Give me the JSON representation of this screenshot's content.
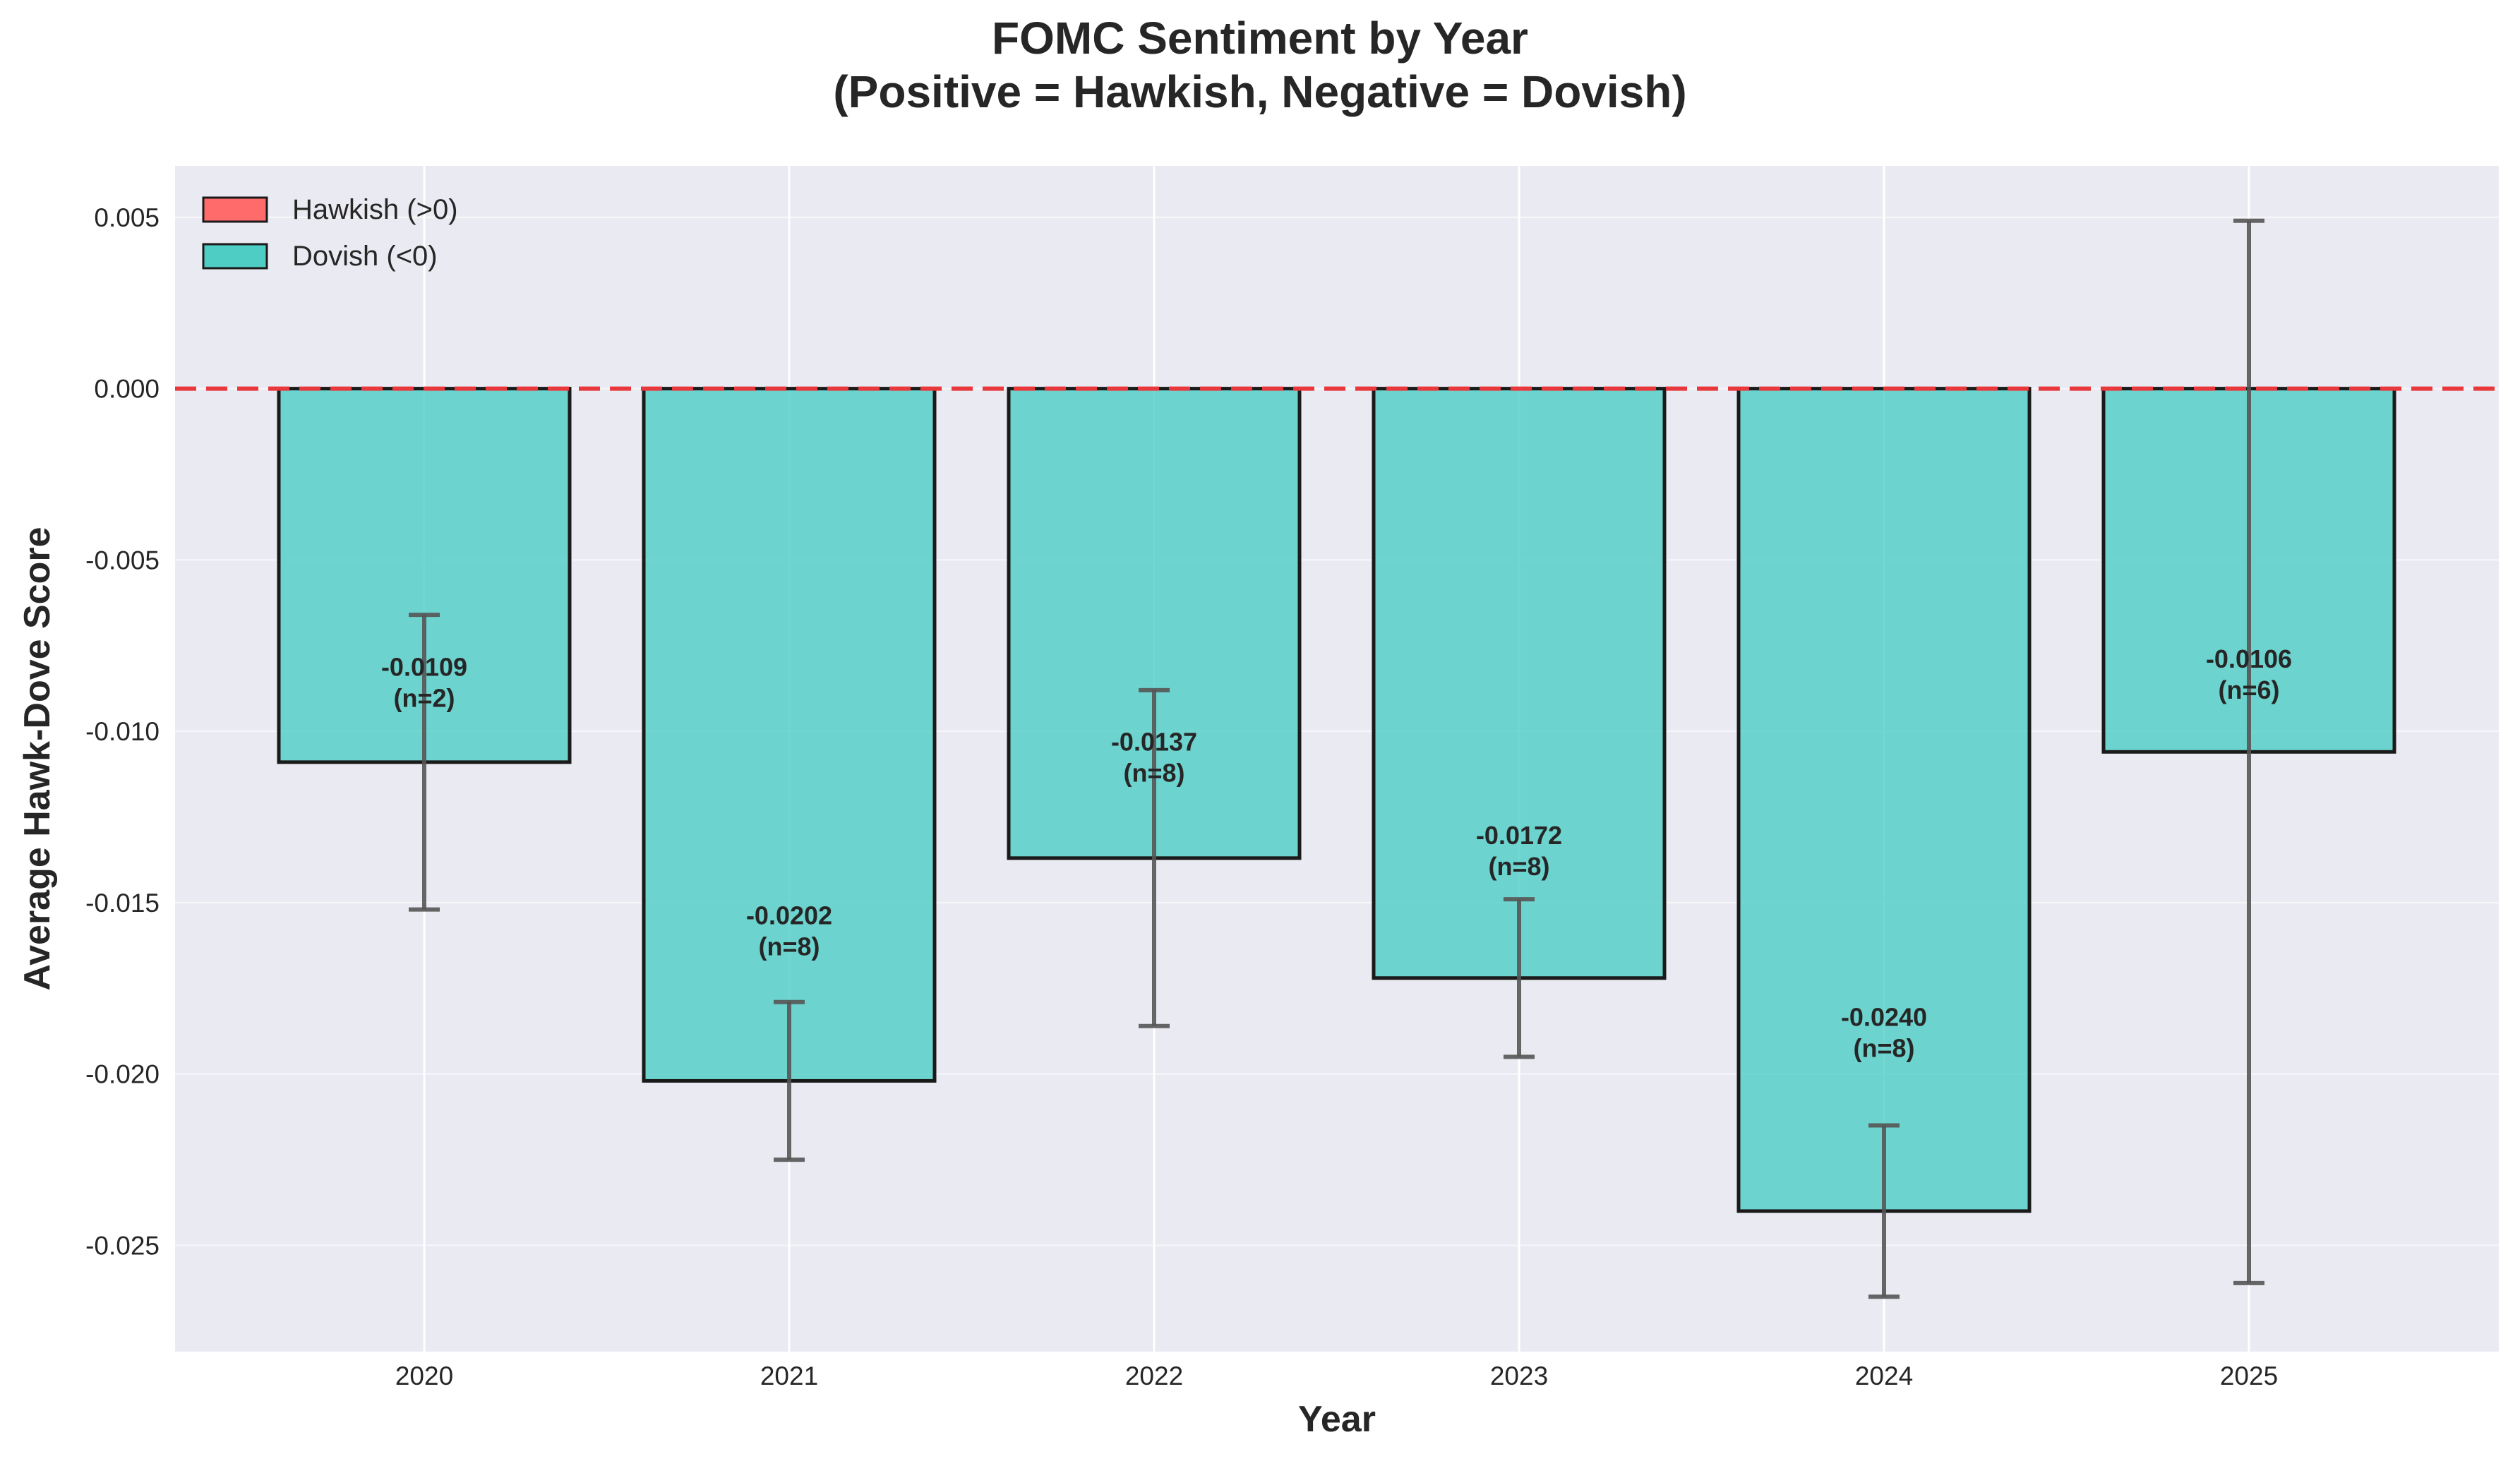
{
  "chart_data": {
    "type": "bar",
    "title": "FOMC Sentiment by Year",
    "subtitle": "(Positive = Hawkish, Negative = Dovish)",
    "xlabel": "Year",
    "ylabel": "Average Hawk-Dove Score",
    "categories": [
      "2020",
      "2021",
      "2022",
      "2023",
      "2024",
      "2025"
    ],
    "values": [
      -0.0109,
      -0.0202,
      -0.0137,
      -0.0172,
      -0.024,
      -0.0106
    ],
    "error": [
      0.0043,
      0.0023,
      0.0049,
      0.0023,
      0.0025,
      0.0155
    ],
    "counts": [
      2,
      8,
      8,
      8,
      8,
      6
    ],
    "value_labels": [
      "-0.0109",
      "-0.0202",
      "-0.0137",
      "-0.0172",
      "-0.0240",
      "-0.0106"
    ],
    "count_labels": [
      "(n=2)",
      "(n=8)",
      "(n=8)",
      "(n=8)",
      "(n=8)",
      "(n=6)"
    ],
    "ylim": [
      -0.0281,
      0.0065
    ],
    "yticks": [
      0.005,
      0.0,
      -0.005,
      -0.01,
      -0.015,
      -0.02,
      -0.025
    ],
    "ytick_labels": [
      "0.005",
      "0.000",
      "-0.005",
      "-0.010",
      "-0.015",
      "-0.020",
      "-0.025"
    ],
    "reference_line": 0.0,
    "grid": true,
    "legend_position": "top-left",
    "legend": [
      {
        "label": "Hawkish (>0)",
        "color": "#ff6b6b"
      },
      {
        "label": "Dovish (<0)",
        "color": "#4ecdc4"
      }
    ],
    "colors": {
      "dovish": "#4ecdc4",
      "hawkish": "#ff6b6b",
      "reference_line": "#e8383b",
      "background": "#eaeaf2",
      "error_bar": "#555555"
    }
  }
}
